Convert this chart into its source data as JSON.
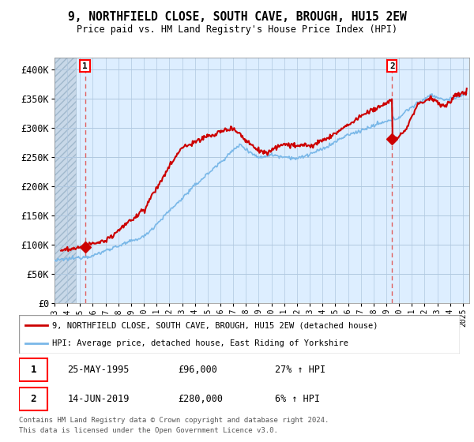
{
  "title": "9, NORTHFIELD CLOSE, SOUTH CAVE, BROUGH, HU15 2EW",
  "subtitle": "Price paid vs. HM Land Registry's House Price Index (HPI)",
  "ylabel_ticks": [
    "£0",
    "£50K",
    "£100K",
    "£150K",
    "£200K",
    "£250K",
    "£300K",
    "£350K",
    "£400K"
  ],
  "ytick_values": [
    0,
    50000,
    100000,
    150000,
    200000,
    250000,
    300000,
    350000,
    400000
  ],
  "ylim": [
    0,
    420000
  ],
  "xlim_start": 1993.0,
  "xlim_end": 2025.5,
  "hpi_color": "#7ab8e8",
  "price_color": "#cc0000",
  "marker_color": "#cc0000",
  "bg_plot_color": "#ddeeff",
  "hatch_bg_color": "#c8d8e8",
  "grid_color": "#b0c8e0",
  "dashed_line_color": "#e06060",
  "transaction1": {
    "label": "1",
    "date": "25-MAY-1995",
    "price": 96000,
    "hpi_pct": "27%",
    "x": 1995.39
  },
  "transaction2": {
    "label": "2",
    "date": "14-JUN-2019",
    "price": 280000,
    "hpi_pct": "6%",
    "x": 2019.45
  },
  "legend_label_red": "9, NORTHFIELD CLOSE, SOUTH CAVE, BROUGH, HU15 2EW (detached house)",
  "legend_label_blue": "HPI: Average price, detached house, East Riding of Yorkshire",
  "footer1": "Contains HM Land Registry data © Crown copyright and database right 2024.",
  "footer2": "This data is licensed under the Open Government Licence v3.0.",
  "hatch_end_x": 1994.7
}
